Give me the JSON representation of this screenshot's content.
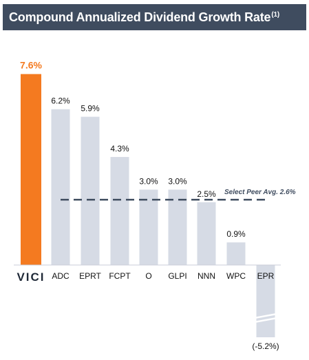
{
  "title": {
    "text": "Compound Annualized Dividend Growth Rate",
    "superscript": "(1)"
  },
  "chart_data": {
    "type": "bar",
    "title": "Compound Annualized Dividend Growth Rate",
    "categories": [
      "VICI",
      "ADC",
      "EPRT",
      "FCPT",
      "O",
      "GLPI",
      "NNN",
      "WPC",
      "EPR"
    ],
    "values": [
      7.6,
      6.2,
      5.9,
      4.3,
      3.0,
      3.0,
      2.5,
      0.9,
      -5.2
    ],
    "value_labels": [
      "7.6%",
      "6.2%",
      "5.9%",
      "4.3%",
      "3.0%",
      "3.0%",
      "2.5%",
      "0.9%",
      "(-5.2%)"
    ],
    "highlight_category": "VICI",
    "colors": {
      "highlight": "#f47a20",
      "bar": "#d6dbe5",
      "reference_line": "#3f4c5f",
      "title_bar": "#3f4c5f"
    },
    "reference_line": {
      "value": 2.6,
      "label": "Select Peer Avg. 2.6%"
    },
    "axis_break_on": "EPR",
    "grid": false,
    "legend": "none"
  }
}
